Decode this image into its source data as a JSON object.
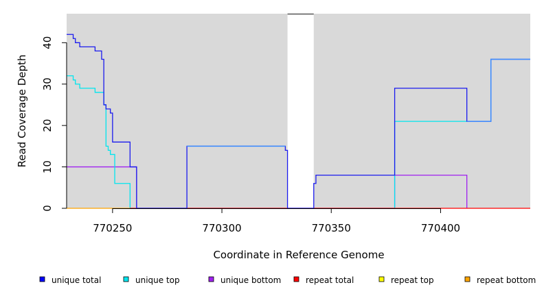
{
  "chart_data": {
    "type": "line",
    "title": "",
    "xlabel": "Coordinate in Reference Genome",
    "ylabel": "Read Coverage Depth",
    "xlim": [
      770229,
      770441
    ],
    "ylim": [
      0,
      47
    ],
    "x_ticks": [
      770250,
      770300,
      770350,
      770400
    ],
    "y_ticks": [
      0,
      10,
      20,
      30,
      40
    ],
    "grid": false,
    "background": "#d9d9d9",
    "gap_region": [
      770330,
      770342
    ],
    "legend_position": "bottom",
    "series": [
      {
        "name": "unique total",
        "color": "#0000ff",
        "line_color": "#1a1aee",
        "step_x": [
          770229,
          770232,
          770233,
          770235,
          770242,
          770245,
          770246,
          770247,
          770249,
          770250,
          770251,
          770258,
          770261,
          770284,
          770329,
          770330,
          770342,
          770343,
          770379,
          770412,
          770423,
          770441
        ],
        "step_y": [
          42,
          41,
          40,
          39,
          38,
          36,
          25,
          24,
          23,
          16,
          16,
          10,
          0,
          15,
          14,
          0,
          6,
          8,
          29,
          21,
          36,
          36
        ]
      },
      {
        "name": "unique top",
        "color": "#00e5ee",
        "line_color": "#00e5ee",
        "step_x": [
          770229,
          770232,
          770233,
          770235,
          770242,
          770246,
          770247,
          770248,
          770249,
          770250,
          770251,
          770258,
          770379,
          770412
        ],
        "step_y": [
          32,
          31,
          30,
          29,
          28,
          25,
          15,
          14,
          13,
          13,
          6,
          0,
          21,
          21
        ]
      },
      {
        "name": "unique bottom",
        "color": "#a020f0",
        "line_color": "#a020f0",
        "step_x": [
          770229,
          770261,
          770379,
          770412
        ],
        "step_y": [
          10,
          0,
          8,
          0
        ]
      },
      {
        "name": "repeat total",
        "color": "#ff0000",
        "line_color": "#ff0000",
        "step_x": [
          770258,
          770441
        ],
        "step_y": [
          0,
          0
        ]
      },
      {
        "name": "repeat top",
        "color": "#ffff00",
        "line_color": "#ffff00",
        "step_x": [],
        "step_y": []
      },
      {
        "name": "repeat bottom",
        "color": "#ffa500",
        "line_color": "#ffa500",
        "step_x": [
          770229,
          770258
        ],
        "step_y": [
          0,
          0
        ]
      }
    ],
    "overlay_series": [
      {
        "color": "#3c8cff",
        "step_x": [
          770284,
          770329
        ],
        "step_y": [
          15,
          15
        ]
      },
      {
        "color": "#3c8cff",
        "step_x": [
          770412,
          770423,
          770441
        ],
        "step_y": [
          21,
          36,
          36
        ]
      }
    ]
  }
}
